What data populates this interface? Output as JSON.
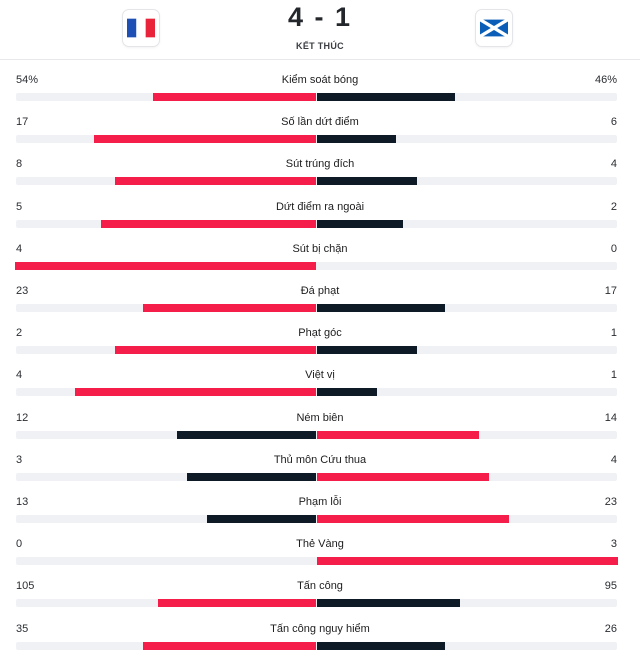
{
  "match": {
    "home_flag_icon": "france-flag-icon",
    "away_flag_icon": "scotland-flag-icon",
    "score": "4 - 1",
    "status": "KẾT THÚC"
  },
  "colors": {
    "winner_bar": "#f51e4b",
    "loser_bar": "#0e1a26",
    "track": "#eff1f4"
  },
  "stats": [
    {
      "label": "Kiểm soát bóng",
      "home": "54%",
      "away": "46%",
      "home_value": 54,
      "away_value": 46
    },
    {
      "label": "Số lần dứt điểm",
      "home": "17",
      "away": "6",
      "home_value": 17,
      "away_value": 6
    },
    {
      "label": "Sút trúng đích",
      "home": "8",
      "away": "4",
      "home_value": 8,
      "away_value": 4
    },
    {
      "label": "Dứt điểm ra ngoài",
      "home": "5",
      "away": "2",
      "home_value": 5,
      "away_value": 2
    },
    {
      "label": "Sút bị chặn",
      "home": "4",
      "away": "0",
      "home_value": 4,
      "away_value": 0
    },
    {
      "label": "Đá phạt",
      "home": "23",
      "away": "17",
      "home_value": 23,
      "away_value": 17
    },
    {
      "label": "Phạt góc",
      "home": "2",
      "away": "1",
      "home_value": 2,
      "away_value": 1
    },
    {
      "label": "Việt vị",
      "home": "4",
      "away": "1",
      "home_value": 4,
      "away_value": 1
    },
    {
      "label": "Ném biên",
      "home": "12",
      "away": "14",
      "home_value": 12,
      "away_value": 14
    },
    {
      "label": "Thủ môn Cứu thua",
      "home": "3",
      "away": "4",
      "home_value": 3,
      "away_value": 4
    },
    {
      "label": "Phạm lỗi",
      "home": "13",
      "away": "23",
      "home_value": 13,
      "away_value": 23
    },
    {
      "label": "Thẻ Vàng",
      "home": "0",
      "away": "3",
      "home_value": 0,
      "away_value": 3
    },
    {
      "label": "Tấn công",
      "home": "105",
      "away": "95",
      "home_value": 105,
      "away_value": 95
    },
    {
      "label": "Tấn công nguy hiểm",
      "home": "35",
      "away": "26",
      "home_value": 35,
      "away_value": 26
    }
  ]
}
